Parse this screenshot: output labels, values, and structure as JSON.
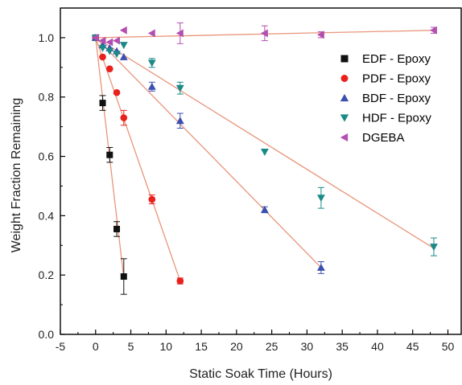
{
  "chart_data": {
    "type": "scatter",
    "xlabel": "Static Soak Time (Hours)",
    "ylabel": "Weight Fraction Remaining",
    "xlim": [
      -5,
      52
    ],
    "ylim": [
      0,
      1.1
    ],
    "xticks": [
      -5,
      0,
      5,
      10,
      15,
      20,
      25,
      30,
      35,
      40,
      45,
      50
    ],
    "yticks": [
      0.0,
      0.2,
      0.4,
      0.6,
      0.8,
      1.0
    ],
    "ytick_labels": [
      "0.0",
      "0.2",
      "0.4",
      "0.6",
      "0.8",
      "1.0"
    ],
    "grid": false,
    "legend_position": "right",
    "fit_line_color": "#e8957a",
    "series": [
      {
        "name": "EDF - Epoxy",
        "marker": "square",
        "color": "#111111",
        "points": [
          {
            "x": 0,
            "y": 1.0,
            "err": 0.0
          },
          {
            "x": 1,
            "y": 0.78,
            "err": 0.025
          },
          {
            "x": 2,
            "y": 0.605,
            "err": 0.025
          },
          {
            "x": 3,
            "y": 0.355,
            "err": 0.025
          },
          {
            "x": 4,
            "y": 0.195,
            "err": 0.06
          }
        ],
        "fit": [
          [
            0,
            1.0
          ],
          [
            4,
            0.19
          ]
        ]
      },
      {
        "name": "PDF - Epoxy",
        "marker": "circle",
        "color": "#e8211d",
        "points": [
          {
            "x": 0,
            "y": 1.0,
            "err": 0.0
          },
          {
            "x": 1,
            "y": 0.935,
            "err": 0.0
          },
          {
            "x": 2,
            "y": 0.895,
            "err": 0.0
          },
          {
            "x": 3,
            "y": 0.815,
            "err": 0.0
          },
          {
            "x": 4,
            "y": 0.73,
            "err": 0.025
          },
          {
            "x": 8,
            "y": 0.455,
            "err": 0.015
          },
          {
            "x": 12,
            "y": 0.18,
            "err": 0.01
          }
        ],
        "fit": [
          [
            0,
            1.0
          ],
          [
            12,
            0.18
          ]
        ]
      },
      {
        "name": "BDF -  Epoxy",
        "marker": "triangle-up",
        "color": "#3b4fb0",
        "points": [
          {
            "x": 0,
            "y": 1.0,
            "err": 0.0
          },
          {
            "x": 1,
            "y": 0.975,
            "err": 0.0
          },
          {
            "x": 2,
            "y": 0.965,
            "err": 0.0
          },
          {
            "x": 3,
            "y": 0.955,
            "err": 0.0
          },
          {
            "x": 4,
            "y": 0.935,
            "err": 0.0
          },
          {
            "x": 8,
            "y": 0.835,
            "err": 0.015
          },
          {
            "x": 12,
            "y": 0.72,
            "err": 0.025
          },
          {
            "x": 24,
            "y": 0.42,
            "err": 0.01
          },
          {
            "x": 32,
            "y": 0.225,
            "err": 0.02
          }
        ],
        "fit": [
          [
            0,
            1.0
          ],
          [
            32,
            0.225
          ]
        ]
      },
      {
        "name": "HDF - Epoxy",
        "marker": "triangle-down",
        "color": "#1a8a88",
        "points": [
          {
            "x": 0,
            "y": 1.0,
            "err": 0.0
          },
          {
            "x": 1,
            "y": 0.965,
            "err": 0.0
          },
          {
            "x": 2,
            "y": 0.955,
            "err": 0.0
          },
          {
            "x": 3,
            "y": 0.945,
            "err": 0.0
          },
          {
            "x": 4,
            "y": 0.975,
            "err": 0.0
          },
          {
            "x": 8,
            "y": 0.915,
            "err": 0.015
          },
          {
            "x": 12,
            "y": 0.83,
            "err": 0.02
          },
          {
            "x": 24,
            "y": 0.615,
            "err": 0.0
          },
          {
            "x": 32,
            "y": 0.46,
            "err": 0.035
          },
          {
            "x": 48,
            "y": 0.295,
            "err": 0.03
          }
        ],
        "fit": [
          [
            0,
            1.0
          ],
          [
            48,
            0.29
          ]
        ]
      },
      {
        "name": "DGEBA",
        "marker": "triangle-left",
        "color": "#b24fb0",
        "points": [
          {
            "x": 0,
            "y": 1.0,
            "err": 0.0
          },
          {
            "x": 1,
            "y": 0.99,
            "err": 0.0
          },
          {
            "x": 2,
            "y": 0.985,
            "err": 0.0
          },
          {
            "x": 3,
            "y": 0.99,
            "err": 0.0
          },
          {
            "x": 4,
            "y": 1.025,
            "err": 0.0
          },
          {
            "x": 8,
            "y": 1.015,
            "err": 0.0
          },
          {
            "x": 12,
            "y": 1.015,
            "err": 0.035
          },
          {
            "x": 24,
            "y": 1.015,
            "err": 0.025
          },
          {
            "x": 32,
            "y": 1.01,
            "err": 0.01
          },
          {
            "x": 48,
            "y": 1.025,
            "err": 0.01
          }
        ],
        "fit": [
          [
            0,
            1.0
          ],
          [
            48,
            1.025
          ]
        ]
      }
    ]
  }
}
